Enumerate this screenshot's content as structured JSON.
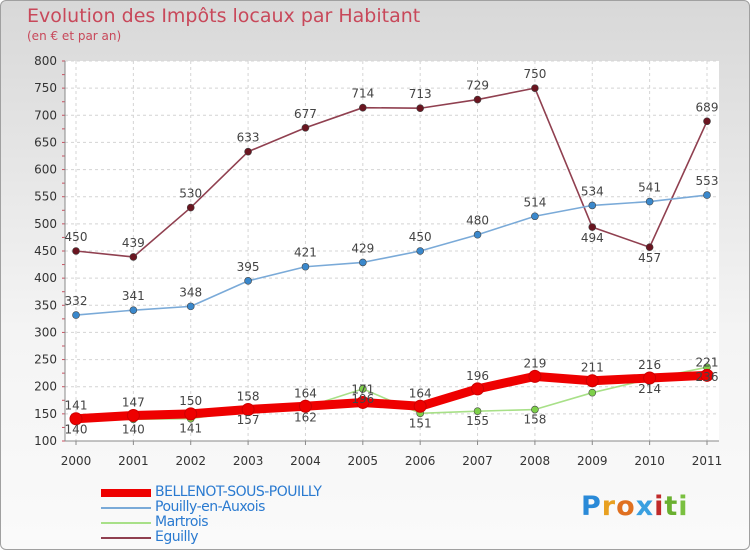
{
  "title": "Evolution des Impôts locaux par Habitant",
  "subtitle": "(en € et par an)",
  "logo": {
    "letters": [
      "P",
      "r",
      "o",
      "x",
      "i",
      "t",
      "i"
    ],
    "colors": [
      "#2a8ad8",
      "#e8a020",
      "#e07020",
      "#3aa0e0",
      "#c02a2a",
      "#6ab030",
      "#7ac040"
    ]
  },
  "chart_data": {
    "type": "line",
    "x": [
      "2000",
      "2001",
      "2002",
      "2003",
      "2004",
      "2005",
      "2006",
      "2007",
      "2008",
      "2009",
      "2010",
      "2011"
    ],
    "ylim": [
      100,
      800
    ],
    "yticks": [
      "100",
      "150",
      "200",
      "250",
      "300",
      "350",
      "400",
      "450",
      "500",
      "550",
      "600",
      "650",
      "700",
      "750",
      "800"
    ],
    "grid": true,
    "legend_position": "bottom-left",
    "series": [
      {
        "name": "BELLENOT-SOUS-POUILLY",
        "color": "#ee0000",
        "marker": "#ee0000",
        "width": "thick",
        "values": [
          141,
          147,
          150,
          158,
          164,
          171,
          164,
          196,
          219,
          211,
          216,
          221
        ],
        "labels": [
          "141",
          "147",
          "150",
          "158",
          "164",
          "171",
          "164",
          "196",
          "219",
          "211",
          "216",
          "221"
        ]
      },
      {
        "name": "Pouilly-en-Auxois",
        "color": "#7aaad8",
        "marker": "#3a88cc",
        "width": "thin",
        "values": [
          332,
          341,
          348,
          395,
          421,
          429,
          450,
          480,
          514,
          534,
          541,
          553
        ],
        "labels": [
          "332",
          "341",
          "348",
          "395",
          "421",
          "429",
          "450",
          "480",
          "514",
          "534",
          "541",
          "553"
        ]
      },
      {
        "name": "Martrois",
        "color": "#a8e088",
        "marker": "#7ed04a",
        "width": "thin",
        "values": [
          140,
          140,
          141,
          157,
          162,
          196,
          151,
          155,
          158,
          189,
          214,
          236
        ],
        "labels": [
          "140",
          "140",
          "141",
          "157",
          "162",
          "196",
          "151",
          "155",
          "158",
          "",
          "214",
          "236"
        ]
      },
      {
        "name": "Eguilly",
        "color": "#904050",
        "marker": "#6a1520",
        "width": "thin",
        "values": [
          450,
          439,
          530,
          633,
          677,
          714,
          713,
          729,
          750,
          494,
          457,
          689
        ],
        "labels": [
          "450",
          "439",
          "530",
          "633",
          "677",
          "714",
          "713",
          "729",
          "750",
          "494",
          "457",
          "689"
        ]
      }
    ]
  }
}
